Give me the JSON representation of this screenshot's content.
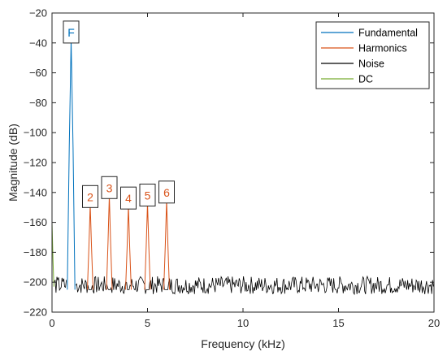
{
  "chart_data": {
    "type": "line",
    "title": "",
    "xlabel": "Frequency (kHz)",
    "ylabel": "Magnitude (dB)",
    "xlim": [
      0,
      20
    ],
    "ylim": [
      -220,
      -20
    ],
    "xticks": [
      0,
      5,
      10,
      15,
      20
    ],
    "yticks": [
      -20,
      -40,
      -60,
      -80,
      -100,
      -120,
      -140,
      -160,
      -180,
      -200,
      -220
    ],
    "grid": false,
    "legend_position": "top-right",
    "colors": {
      "Fundamental": "#0072BD",
      "Harmonics": "#D95319",
      "Noise": "#000000",
      "DC": "#77AC30"
    },
    "series": [
      {
        "name": "Fundamental",
        "x": [
          0.8,
          0.9,
          1.0,
          1.1,
          1.2
        ],
        "y": [
          -205,
          -110,
          -38,
          -110,
          -205
        ]
      },
      {
        "name": "Harmonics",
        "peaks": [
          {
            "label": "2",
            "x": 2,
            "y": -148
          },
          {
            "label": "3",
            "x": 3,
            "y": -142
          },
          {
            "label": "4",
            "x": 4,
            "y": -149
          },
          {
            "label": "5",
            "x": 5,
            "y": -147
          },
          {
            "label": "6",
            "x": 6,
            "y": -145
          }
        ],
        "base": -205
      },
      {
        "name": "Noise",
        "x_range": [
          0,
          20
        ],
        "mean": -202,
        "spread": 6
      },
      {
        "name": "DC",
        "x": [
          0,
          0.05,
          0.1
        ],
        "y": [
          -160,
          -185,
          -203
        ]
      }
    ],
    "annotations": [
      {
        "text": "F",
        "x": 1,
        "y": -33,
        "color": "#0072BD"
      },
      {
        "text": "2",
        "x": 2,
        "y": -143,
        "color": "#D95319"
      },
      {
        "text": "3",
        "x": 3,
        "y": -137,
        "color": "#D95319"
      },
      {
        "text": "4",
        "x": 4,
        "y": -144,
        "color": "#D95319"
      },
      {
        "text": "5",
        "x": 5,
        "y": -142,
        "color": "#D95319"
      },
      {
        "text": "6",
        "x": 6,
        "y": -140,
        "color": "#D95319"
      }
    ]
  }
}
